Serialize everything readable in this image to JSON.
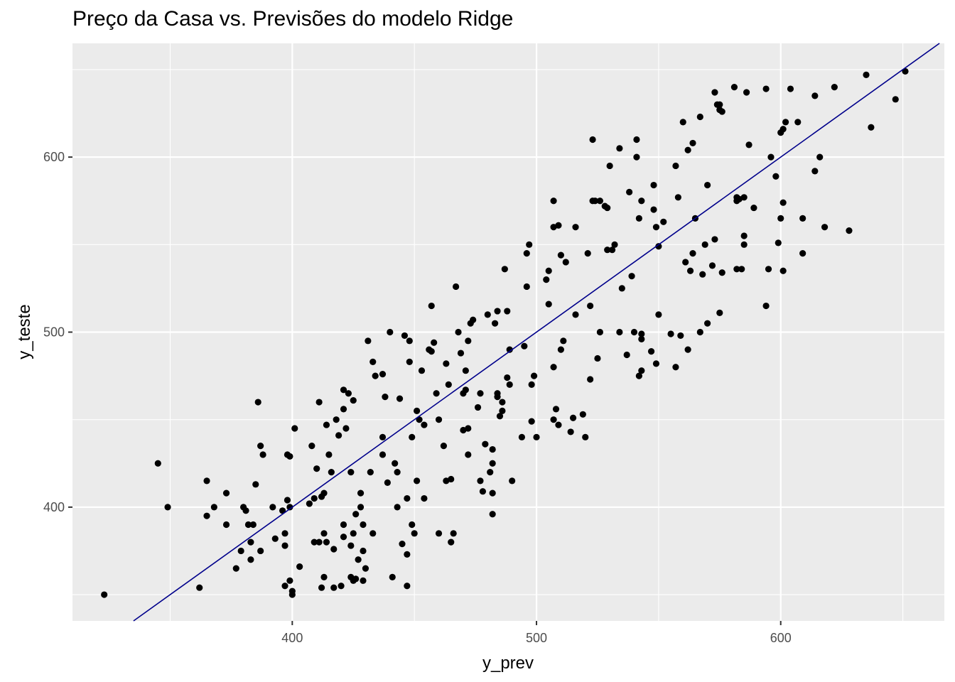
{
  "chart_data": {
    "type": "scatter",
    "title": "Preço da Casa vs. Previsões do modelo Ridge",
    "xlabel": "y_prev",
    "ylabel": "y_teste",
    "xlim": [
      310,
      667
    ],
    "ylim": [
      335,
      665
    ],
    "x_ticks": [
      400,
      500,
      600
    ],
    "y_ticks": [
      400,
      500,
      600
    ],
    "x_tick_labels": [
      "400",
      "500",
      "600"
    ],
    "y_tick_labels": [
      "400",
      "500",
      "600"
    ],
    "grid": true,
    "colors": {
      "panel_background": "#ebebeb",
      "grid_major": "#ffffff",
      "points": "#000000",
      "reference_line": "#00008b"
    },
    "reference_line": {
      "slope": 1,
      "intercept": 0
    },
    "points": [
      [
        323,
        350
      ],
      [
        345,
        425
      ],
      [
        349,
        400
      ],
      [
        362,
        354
      ],
      [
        365,
        395
      ],
      [
        365,
        415
      ],
      [
        368,
        400
      ],
      [
        373,
        390
      ],
      [
        373,
        408
      ],
      [
        377,
        365
      ],
      [
        379,
        375
      ],
      [
        380,
        400
      ],
      [
        381,
        398
      ],
      [
        382,
        390
      ],
      [
        383,
        370
      ],
      [
        383,
        380
      ],
      [
        384,
        390
      ],
      [
        385,
        413
      ],
      [
        386,
        460
      ],
      [
        387,
        375
      ],
      [
        387,
        435
      ],
      [
        388,
        430
      ],
      [
        392,
        400
      ],
      [
        393,
        382
      ],
      [
        396,
        398
      ],
      [
        397,
        385
      ],
      [
        397,
        378
      ],
      [
        397,
        355
      ],
      [
        398,
        404
      ],
      [
        398,
        430
      ],
      [
        399,
        358
      ],
      [
        399,
        400
      ],
      [
        399,
        429
      ],
      [
        400,
        352
      ],
      [
        400,
        350
      ],
      [
        401,
        445
      ],
      [
        403,
        366
      ],
      [
        407,
        402
      ],
      [
        408,
        435
      ],
      [
        409,
        405
      ],
      [
        409,
        380
      ],
      [
        410,
        422
      ],
      [
        411,
        380
      ],
      [
        411,
        460
      ],
      [
        412,
        406
      ],
      [
        412,
        354
      ],
      [
        413,
        408
      ],
      [
        413,
        385
      ],
      [
        413,
        360
      ],
      [
        414,
        380
      ],
      [
        414,
        447
      ],
      [
        415,
        430
      ],
      [
        416,
        420
      ],
      [
        417,
        376
      ],
      [
        417,
        354
      ],
      [
        418,
        450
      ],
      [
        419,
        441
      ],
      [
        420,
        355
      ],
      [
        421,
        383
      ],
      [
        421,
        390
      ],
      [
        421,
        467
      ],
      [
        421,
        456
      ],
      [
        422,
        445
      ],
      [
        423,
        465
      ],
      [
        424,
        360
      ],
      [
        424,
        378
      ],
      [
        424,
        420
      ],
      [
        425,
        461
      ],
      [
        425,
        358
      ],
      [
        425,
        385
      ],
      [
        426,
        396
      ],
      [
        426,
        359
      ],
      [
        427,
        370
      ],
      [
        428,
        408
      ],
      [
        428,
        400
      ],
      [
        429,
        375
      ],
      [
        429,
        390
      ],
      [
        429,
        358
      ],
      [
        430,
        365
      ],
      [
        431,
        495
      ],
      [
        432,
        420
      ],
      [
        433,
        385
      ],
      [
        433,
        483
      ],
      [
        434,
        475
      ],
      [
        437,
        440
      ],
      [
        437,
        430
      ],
      [
        437,
        476
      ],
      [
        438,
        463
      ],
      [
        439,
        414
      ],
      [
        440,
        500
      ],
      [
        441,
        360
      ],
      [
        442,
        425
      ],
      [
        443,
        420
      ],
      [
        443,
        400
      ],
      [
        444,
        462
      ],
      [
        445,
        379
      ],
      [
        446,
        498
      ],
      [
        447,
        355
      ],
      [
        447,
        373
      ],
      [
        447,
        405
      ],
      [
        448,
        495
      ],
      [
        448,
        483
      ],
      [
        449,
        440
      ],
      [
        449,
        390
      ],
      [
        450,
        385
      ],
      [
        451,
        455
      ],
      [
        451,
        415
      ],
      [
        452,
        450
      ],
      [
        453,
        478
      ],
      [
        454,
        447
      ],
      [
        454,
        405
      ],
      [
        456,
        490
      ],
      [
        457,
        515
      ],
      [
        457,
        489
      ],
      [
        458,
        494
      ],
      [
        459,
        465
      ],
      [
        460,
        450
      ],
      [
        460,
        385
      ],
      [
        462,
        435
      ],
      [
        463,
        415
      ],
      [
        463,
        482
      ],
      [
        464,
        470
      ],
      [
        465,
        380
      ],
      [
        465,
        416
      ],
      [
        466,
        385
      ],
      [
        467,
        526
      ],
      [
        468,
        500
      ],
      [
        469,
        488
      ],
      [
        470,
        465
      ],
      [
        470,
        444
      ],
      [
        471,
        467
      ],
      [
        471,
        478
      ],
      [
        472,
        445
      ],
      [
        472,
        430
      ],
      [
        472,
        495
      ],
      [
        473,
        505
      ],
      [
        474,
        507
      ],
      [
        476,
        457
      ],
      [
        477,
        465
      ],
      [
        477,
        415
      ],
      [
        478,
        409
      ],
      [
        479,
        436
      ],
      [
        480,
        510
      ],
      [
        481,
        420
      ],
      [
        482,
        433
      ],
      [
        482,
        396
      ],
      [
        482,
        425
      ],
      [
        482,
        408
      ],
      [
        483,
        505
      ],
      [
        484,
        512
      ],
      [
        484,
        463
      ],
      [
        484,
        465
      ],
      [
        485,
        452
      ],
      [
        486,
        460
      ],
      [
        486,
        455
      ],
      [
        487,
        536
      ],
      [
        488,
        512
      ],
      [
        488,
        474
      ],
      [
        489,
        470
      ],
      [
        489,
        490
      ],
      [
        490,
        415
      ],
      [
        494,
        440
      ],
      [
        495,
        492
      ],
      [
        496,
        526
      ],
      [
        496,
        545
      ],
      [
        497,
        550
      ],
      [
        498,
        470
      ],
      [
        498,
        449
      ],
      [
        499,
        475
      ],
      [
        500,
        440
      ],
      [
        504,
        530
      ],
      [
        505,
        535
      ],
      [
        505,
        516
      ],
      [
        507,
        560
      ],
      [
        507,
        575
      ],
      [
        507,
        480
      ],
      [
        507,
        450
      ],
      [
        508,
        456
      ],
      [
        509,
        561
      ],
      [
        509,
        447
      ],
      [
        510,
        544
      ],
      [
        510,
        490
      ],
      [
        511,
        495
      ],
      [
        512,
        540
      ],
      [
        514,
        443
      ],
      [
        515,
        451
      ],
      [
        516,
        510
      ],
      [
        516,
        560
      ],
      [
        519,
        453
      ],
      [
        520,
        440
      ],
      [
        521,
        545
      ],
      [
        522,
        473
      ],
      [
        522,
        515
      ],
      [
        523,
        610
      ],
      [
        523,
        575
      ],
      [
        524,
        575
      ],
      [
        525,
        485
      ],
      [
        526,
        575
      ],
      [
        526,
        500
      ],
      [
        528,
        572
      ],
      [
        529,
        547
      ],
      [
        529,
        571
      ],
      [
        530,
        595
      ],
      [
        531,
        547
      ],
      [
        532,
        550
      ],
      [
        534,
        605
      ],
      [
        534,
        500
      ],
      [
        535,
        525
      ],
      [
        537,
        487
      ],
      [
        538,
        580
      ],
      [
        539,
        532
      ],
      [
        540,
        500
      ],
      [
        541,
        600
      ],
      [
        541,
        610
      ],
      [
        542,
        475
      ],
      [
        542,
        565
      ],
      [
        543,
        499
      ],
      [
        543,
        575
      ],
      [
        543,
        496
      ],
      [
        543,
        478
      ],
      [
        547,
        489
      ],
      [
        548,
        584
      ],
      [
        548,
        570
      ],
      [
        549,
        560
      ],
      [
        549,
        482
      ],
      [
        550,
        510
      ],
      [
        550,
        549
      ],
      [
        552,
        563
      ],
      [
        555,
        499
      ],
      [
        557,
        480
      ],
      [
        557,
        595
      ],
      [
        558,
        577
      ],
      [
        559,
        498
      ],
      [
        560,
        620
      ],
      [
        561,
        540
      ],
      [
        562,
        490
      ],
      [
        562,
        604
      ],
      [
        563,
        535
      ],
      [
        564,
        545
      ],
      [
        564,
        608
      ],
      [
        565,
        565
      ],
      [
        567,
        500
      ],
      [
        567,
        623
      ],
      [
        568,
        533
      ],
      [
        569,
        550
      ],
      [
        570,
        505
      ],
      [
        570,
        584
      ],
      [
        572,
        538
      ],
      [
        573,
        553
      ],
      [
        573,
        637
      ],
      [
        574,
        630
      ],
      [
        575,
        511
      ],
      [
        575,
        630
      ],
      [
        575,
        627
      ],
      [
        576,
        626
      ],
      [
        576,
        534
      ],
      [
        581,
        640
      ],
      [
        582,
        536
      ],
      [
        582,
        575
      ],
      [
        582,
        577
      ],
      [
        583,
        576
      ],
      [
        584,
        536
      ],
      [
        585,
        555
      ],
      [
        585,
        550
      ],
      [
        585,
        577
      ],
      [
        586,
        637
      ],
      [
        587,
        607
      ],
      [
        589,
        571
      ],
      [
        594,
        639
      ],
      [
        594,
        515
      ],
      [
        595,
        536
      ],
      [
        596,
        600
      ],
      [
        598,
        589
      ],
      [
        599,
        551
      ],
      [
        600,
        614
      ],
      [
        600,
        565
      ],
      [
        601,
        535
      ],
      [
        601,
        616
      ],
      [
        601,
        574
      ],
      [
        602,
        620
      ],
      [
        604,
        639
      ],
      [
        607,
        620
      ],
      [
        609,
        545
      ],
      [
        609,
        565
      ],
      [
        614,
        592
      ],
      [
        614,
        635
      ],
      [
        616,
        600
      ],
      [
        618,
        560
      ],
      [
        622,
        640
      ],
      [
        628,
        558
      ],
      [
        635,
        647
      ],
      [
        637,
        617
      ],
      [
        647,
        633
      ],
      [
        651,
        649
      ]
    ]
  }
}
